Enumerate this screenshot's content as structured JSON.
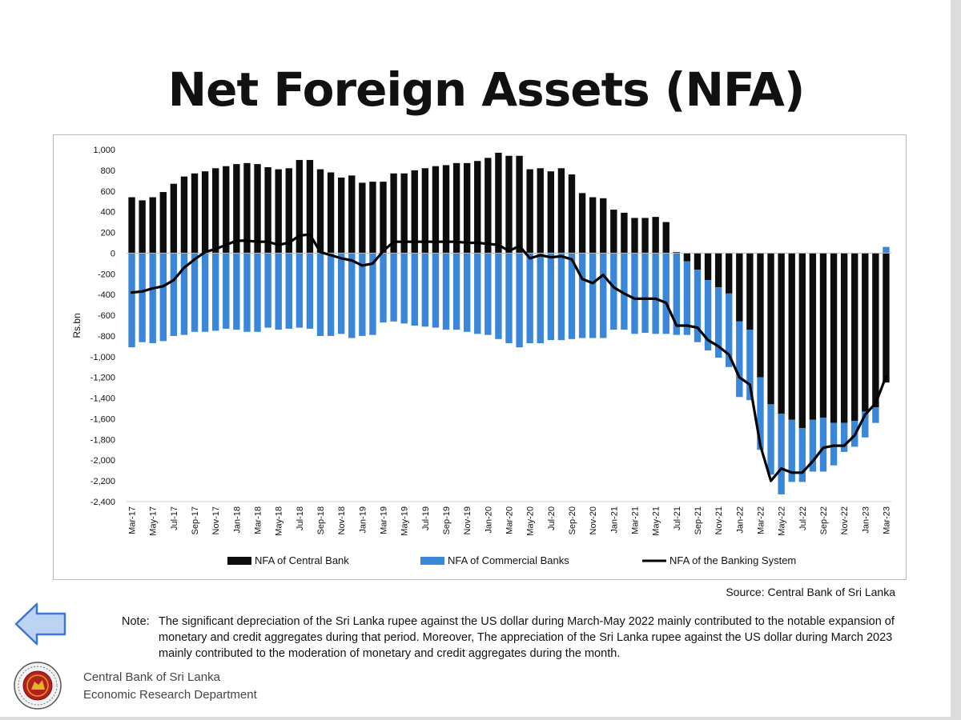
{
  "page": {
    "title": "Net Foreign Assets (NFA)",
    "source": "Source: Central Bank of Sri Lanka",
    "note_label": "Note:",
    "note_text": "The significant depreciation of the Sri Lanka rupee against the US dollar during March-May 2022 mainly contributed to the notable expansion of monetary and credit aggregates during that period. Moreover, The appreciation of the Sri Lanka rupee against the US dollar during March 2023 mainly contributed to the moderation of monetary and credit aggregates during the month.",
    "org_line1": "Central Bank of Sri Lanka",
    "org_line2": "Economic Research Department",
    "back_icon": "left-arrow-icon",
    "logo_icon": "central-bank-seal-icon"
  },
  "colors": {
    "central_bank": "#0d0d0d",
    "commercial_banks": "#3a86d8",
    "banking_system": "#000000",
    "arrow_fill": "#bcd4f2",
    "arrow_stroke": "#3a78d0"
  },
  "chart_data": {
    "type": "bar",
    "stacked": true,
    "ylabel": "Rs.bn",
    "ylim": [
      -2400,
      1000
    ],
    "ytick_step": 200,
    "grid": false,
    "legend_position": "bottom",
    "x": [
      "Mar-17",
      "Apr-17",
      "May-17",
      "Jun-17",
      "Jul-17",
      "Aug-17",
      "Sep-17",
      "Oct-17",
      "Nov-17",
      "Dec-17",
      "Jan-18",
      "Feb-18",
      "Mar-18",
      "Apr-18",
      "May-18",
      "Jun-18",
      "Jul-18",
      "Aug-18",
      "Sep-18",
      "Oct-18",
      "Nov-18",
      "Dec-18",
      "Jan-19",
      "Feb-19",
      "Mar-19",
      "Apr-19",
      "May-19",
      "Jun-19",
      "Jul-19",
      "Aug-19",
      "Sep-19",
      "Oct-19",
      "Nov-19",
      "Dec-19",
      "Jan-20",
      "Feb-20",
      "Mar-20",
      "Apr-20",
      "May-20",
      "Jun-20",
      "Jul-20",
      "Aug-20",
      "Sep-20",
      "Oct-20",
      "Nov-20",
      "Dec-20",
      "Jan-21",
      "Feb-21",
      "Mar-21",
      "Apr-21",
      "May-21",
      "Jun-21",
      "Jul-21",
      "Aug-21",
      "Sep-21",
      "Oct-21",
      "Nov-21",
      "Dec-21",
      "Jan-22",
      "Feb-22",
      "Mar-22",
      "Apr-22",
      "May-22",
      "Jun-22",
      "Jul-22",
      "Aug-22",
      "Sep-22",
      "Oct-22",
      "Nov-22",
      "Dec-22",
      "Jan-23",
      "Feb-23",
      "Mar-23"
    ],
    "tick_labels": [
      "Mar-17",
      "May-17",
      "Jul-17",
      "Sep-17",
      "Nov-17",
      "Jan-18",
      "Mar-18",
      "May-18",
      "Jul-18",
      "Sep-18",
      "Nov-18",
      "Jan-19",
      "Mar-19",
      "May-19",
      "Jul-19",
      "Sep-19",
      "Nov-19",
      "Jan-20",
      "Mar-20",
      "May-20",
      "Jul-20",
      "Sep-20",
      "Nov-20",
      "Jan-21",
      "Mar-21",
      "May-21",
      "Jul-21",
      "Sep-21",
      "Nov-21",
      "Jan-22",
      "Mar-22",
      "May-22",
      "Jul-22",
      "Sep-22",
      "Nov-22",
      "Jan-23",
      "Mar-23"
    ],
    "series": [
      {
        "name": "NFA of Central Bank",
        "kind": "bar",
        "values": [
          540,
          510,
          540,
          590,
          670,
          740,
          770,
          790,
          820,
          840,
          860,
          870,
          860,
          830,
          810,
          820,
          900,
          900,
          810,
          780,
          730,
          750,
          680,
          690,
          690,
          770,
          770,
          800,
          820,
          840,
          850,
          870,
          870,
          890,
          920,
          970,
          940,
          940,
          810,
          820,
          790,
          820,
          760,
          580,
          540,
          530,
          420,
          390,
          340,
          340,
          350,
          300,
          10,
          -80,
          -160,
          -260,
          -330,
          -390,
          -660,
          -740,
          -1200,
          -1460,
          -1550,
          -1610,
          -1690,
          -1610,
          -1590,
          -1640,
          -1640,
          -1620,
          -1530,
          -1490,
          -1250
        ]
      },
      {
        "name": "NFA of Commercial Banks",
        "kind": "bar",
        "values": [
          -910,
          -860,
          -870,
          -850,
          -800,
          -790,
          -760,
          -760,
          -750,
          -730,
          -740,
          -760,
          -760,
          -720,
          -740,
          -730,
          -720,
          -730,
          -800,
          -800,
          -780,
          -820,
          -800,
          -790,
          -670,
          -660,
          -680,
          -700,
          -710,
          -720,
          -740,
          -740,
          -760,
          -780,
          -790,
          -830,
          -870,
          -910,
          -870,
          -870,
          -840,
          -840,
          -830,
          -820,
          -820,
          -820,
          -740,
          -740,
          -780,
          -770,
          -780,
          -780,
          -790,
          -710,
          -700,
          -680,
          -680,
          -710,
          -730,
          -680,
          -700,
          -680,
          -780,
          -600,
          -520,
          -500,
          -520,
          -410,
          -280,
          -250,
          -250,
          -150,
          60
        ]
      },
      {
        "name": "NFA of the Banking System",
        "kind": "line",
        "values": [
          -380,
          -370,
          -340,
          -320,
          -260,
          -140,
          -60,
          10,
          40,
          80,
          120,
          120,
          110,
          110,
          80,
          100,
          170,
          180,
          10,
          -20,
          -50,
          -70,
          -120,
          -100,
          20,
          110,
          110,
          110,
          110,
          110,
          110,
          110,
          100,
          100,
          90,
          80,
          20,
          70,
          -50,
          -20,
          -40,
          -30,
          -60,
          -250,
          -290,
          -210,
          -330,
          -390,
          -440,
          -440,
          -440,
          -480,
          -700,
          -700,
          -720,
          -840,
          -900,
          -980,
          -1200,
          -1270,
          -1860,
          -2200,
          -2080,
          -2120,
          -2120,
          -2010,
          -1880,
          -1860,
          -1860,
          -1760,
          -1560,
          -1450,
          -1190
        ]
      }
    ]
  }
}
